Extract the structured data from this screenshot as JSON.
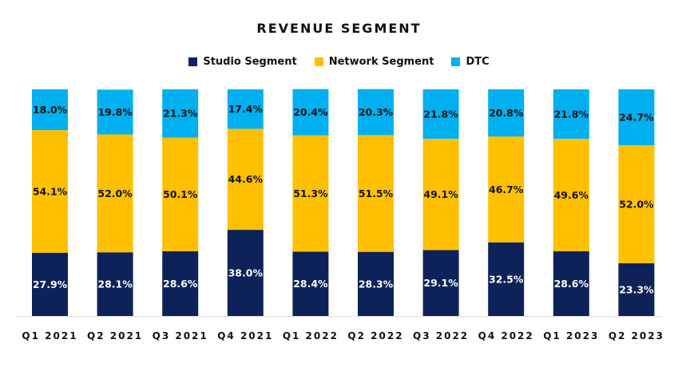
{
  "chart_data": {
    "type": "bar",
    "stacked": true,
    "title": "REVENUE SEGMENT",
    "categories": [
      "Q1 2021",
      "Q2 2021",
      "Q3 2021",
      "Q4 2021",
      "Q1 2022",
      "Q2 2022",
      "Q3 2022",
      "Q4 2022",
      "Q1 2023",
      "Q2 2023"
    ],
    "series": [
      {
        "name": "Studio Segment",
        "color": "#0d2259",
        "text_color": "#ffffff",
        "values": [
          27.9,
          28.1,
          28.6,
          38.0,
          28.4,
          28.3,
          29.1,
          32.5,
          28.6,
          23.3
        ],
        "labels": [
          "27.9%",
          "28.1%",
          "28.6%",
          "38.0%",
          "28.4%",
          "28.3%",
          "29.1%",
          "32.5%",
          "28.6%",
          "23.3%"
        ]
      },
      {
        "name": "Network Segment",
        "color": "#ffc000",
        "text_color": "#111111",
        "values": [
          54.1,
          52.0,
          50.1,
          44.6,
          51.3,
          51.5,
          49.1,
          46.7,
          49.6,
          52.0
        ],
        "labels": [
          "54.1%",
          "52.0%",
          "50.1%",
          "44.6%",
          "51.3%",
          "51.5%",
          "49.1%",
          "46.7%",
          "49.6%",
          "52.0%"
        ]
      },
      {
        "name": "DTC",
        "color": "#00b0f0",
        "text_color": "#111111",
        "values": [
          18.0,
          19.8,
          21.3,
          17.4,
          20.4,
          20.3,
          21.8,
          20.8,
          21.8,
          24.7
        ],
        "labels": [
          "18.0%",
          "19.8%",
          "21.3%",
          "17.4%",
          "20.4%",
          "20.3%",
          "21.8%",
          "20.8%",
          "21.8%",
          "24.7%"
        ]
      }
    ],
    "ylim": [
      0,
      100
    ],
    "grid": false,
    "legend": "top-center",
    "xlabel": "",
    "ylabel": ""
  }
}
